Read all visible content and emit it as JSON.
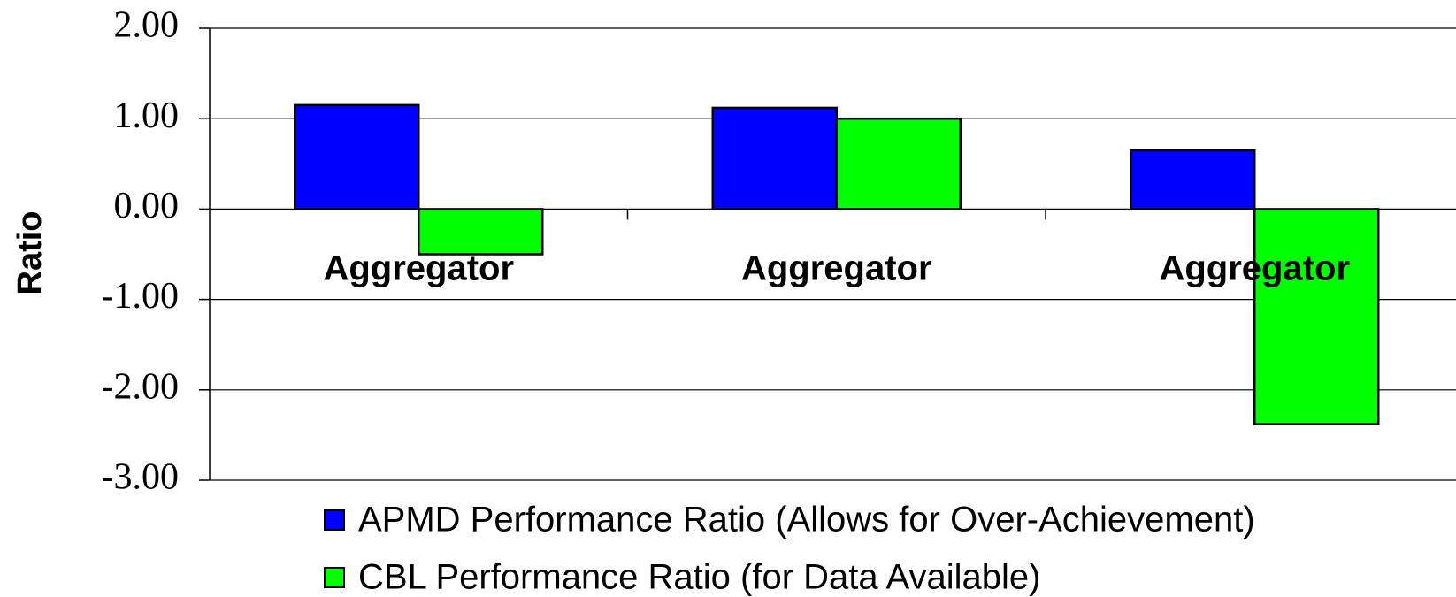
{
  "chart_data": {
    "type": "bar",
    "y_label": "Ratio",
    "categories": [
      "Aggregator",
      "Aggregator",
      "Aggregator"
    ],
    "series": [
      {
        "name": "APMD Performance Ratio (Allows for Over-Achievement)",
        "color": "#0000ff",
        "values": [
          1.15,
          1.12,
          0.65
        ]
      },
      {
        "name": "CBL Performance Ratio (for Data Available)",
        "color": "#00ff00",
        "values": [
          -0.5,
          1.0,
          -2.38
        ]
      }
    ],
    "ylim": [
      -3,
      2
    ],
    "yticks": [
      {
        "value": 2,
        "label": "2.00"
      },
      {
        "value": 1,
        "label": "1.00"
      },
      {
        "value": 0,
        "label": "0.00"
      },
      {
        "value": -1,
        "label": "-1.00"
      },
      {
        "value": -2,
        "label": "-2.00"
      },
      {
        "value": -3,
        "label": "-3.00"
      }
    ],
    "grid": true
  }
}
